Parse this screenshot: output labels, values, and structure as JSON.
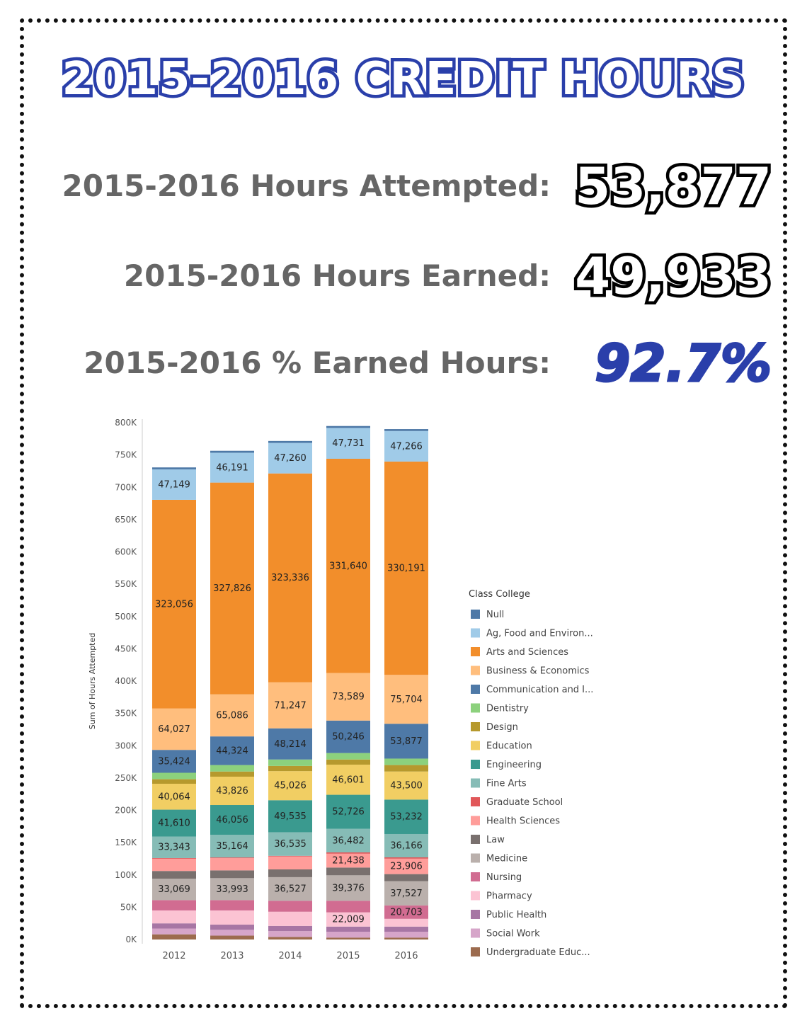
{
  "title": "2015-2016 CREDIT HOURS",
  "stats": {
    "attempted_label": "2015-2016 Hours Attempted:",
    "attempted_value": "53,877",
    "earned_label": "2015-2016 Hours Earned:",
    "earned_value": "49,933",
    "pct_label": "2015-2016 % Earned Hours:",
    "pct_value": "92.7%"
  },
  "chart_data": {
    "type": "bar",
    "stacked": true,
    "ylabel": "Sum of Hours Attempted",
    "ylim": [
      0,
      800000
    ],
    "yticks": [
      "0K",
      "50K",
      "100K",
      "150K",
      "200K",
      "250K",
      "300K",
      "350K",
      "400K",
      "450K",
      "500K",
      "550K",
      "600K",
      "650K",
      "700K",
      "750K",
      "800K"
    ],
    "categories": [
      "2012",
      "2013",
      "2014",
      "2015",
      "2016"
    ],
    "legend_title": "Class College",
    "series": [
      {
        "name": "Undergraduate Educ...",
        "color": "#9c6b4e",
        "values": [
          8000,
          6000,
          4000,
          3000,
          3000
        ]
      },
      {
        "name": "Social Work",
        "color": "#d6a5c9",
        "values": [
          9000,
          9000,
          9000,
          9000,
          9000
        ]
      },
      {
        "name": "Public Health",
        "color": "#a776a4",
        "values": [
          8000,
          8000,
          8000,
          8000,
          8000
        ]
      },
      {
        "name": "Pharmacy",
        "color": "#fbc3d3",
        "values": [
          20000,
          22000,
          22000,
          22009,
          12000
        ]
      },
      {
        "name": "Nursing",
        "color": "#d16c91",
        "values": [
          16000,
          16000,
          17000,
          18000,
          20703
        ]
      },
      {
        "name": "Medicine",
        "color": "#bab0ac",
        "values": [
          33069,
          33993,
          36527,
          39376,
          37527
        ]
      },
      {
        "name": "Law",
        "color": "#79706e",
        "values": [
          12000,
          12000,
          12000,
          12000,
          11000
        ]
      },
      {
        "name": "Health Sciences",
        "color": "#ff9d9a",
        "values": [
          19000,
          19000,
          20000,
          21438,
          23906
        ]
      },
      {
        "name": "Graduate School",
        "color": "#e15759",
        "values": [
          1000,
          1000,
          1000,
          2000,
          2000
        ]
      },
      {
        "name": "Fine Arts",
        "color": "#86bcb6",
        "values": [
          33343,
          35164,
          36535,
          36482,
          36166
        ]
      },
      {
        "name": "Engineering",
        "color": "#3a9a8f",
        "values": [
          41610,
          46056,
          49535,
          52726,
          53232
        ]
      },
      {
        "name": "Education",
        "color": "#f1ce63",
        "values": [
          40064,
          43826,
          45026,
          46601,
          43500
        ]
      },
      {
        "name": "Design",
        "color": "#b6992d",
        "values": [
          7000,
          8000,
          8000,
          8000,
          10000
        ]
      },
      {
        "name": "Dentistry",
        "color": "#8cd17d",
        "values": [
          10000,
          10000,
          10000,
          10000,
          10000
        ]
      },
      {
        "name": "Communication and I...",
        "color": "#4e79a7",
        "values": [
          35424,
          44324,
          48214,
          50246,
          53877
        ]
      },
      {
        "name": "Business & Economics",
        "color": "#ffbe7d",
        "values": [
          64027,
          65086,
          71247,
          73589,
          75704
        ]
      },
      {
        "name": "Arts and Sciences",
        "color": "#f28e2b",
        "values": [
          323056,
          327826,
          323336,
          331640,
          330191
        ]
      },
      {
        "name": "Ag, Food and Environ...",
        "color": "#a0cbe8",
        "values": [
          47149,
          46191,
          47260,
          47731,
          47266
        ]
      },
      {
        "name": "Null",
        "color": "#4e79a7",
        "values": [
          3000,
          3000,
          3000,
          3000,
          3000
        ]
      }
    ],
    "legend_order": [
      "Null",
      "Ag, Food and Environ...",
      "Arts and Sciences",
      "Business & Economics",
      "Communication and I...",
      "Dentistry",
      "Design",
      "Education",
      "Engineering",
      "Fine Arts",
      "Graduate School",
      "Health Sciences",
      "Law",
      "Medicine",
      "Nursing",
      "Pharmacy",
      "Public Health",
      "Social Work",
      "Undergraduate Educ..."
    ],
    "data_labels": [
      {
        "series": "Ag, Food and Environ...",
        "labels": [
          "47,149",
          "46,191",
          "47,260",
          "47,731",
          "47,266"
        ]
      },
      {
        "series": "Arts and Sciences",
        "labels": [
          "323,056",
          "327,826",
          "323,336",
          "331,640",
          "330,191"
        ]
      },
      {
        "series": "Business & Economics",
        "labels": [
          "64,027",
          "65,086",
          "71,247",
          "73,589",
          "75,704"
        ]
      },
      {
        "series": "Communication and I...",
        "labels": [
          "35,424",
          "44,324",
          "48,214",
          "50,246",
          "53,877"
        ]
      },
      {
        "series": "Education",
        "labels": [
          "40,064",
          "43,826",
          "45,026",
          "46,601",
          "43,500"
        ]
      },
      {
        "series": "Engineering",
        "labels": [
          "41,610",
          "46,056",
          "49,535",
          "52,726",
          "53,232"
        ]
      },
      {
        "series": "Fine Arts",
        "labels": [
          "33,343",
          "35,164",
          "36,535",
          "36,482",
          "36,166"
        ]
      },
      {
        "series": "Health Sciences",
        "labels": [
          "",
          "",
          "",
          "21,438",
          "23,906"
        ]
      },
      {
        "series": "Medicine",
        "labels": [
          "33,069",
          "33,993",
          "36,527",
          "39,376",
          "37,527"
        ]
      },
      {
        "series": "Nursing",
        "labels": [
          "",
          "",
          "",
          "",
          "20,703"
        ]
      },
      {
        "series": "Pharmacy",
        "labels": [
          "",
          "",
          "",
          "22,009",
          ""
        ]
      }
    ]
  }
}
